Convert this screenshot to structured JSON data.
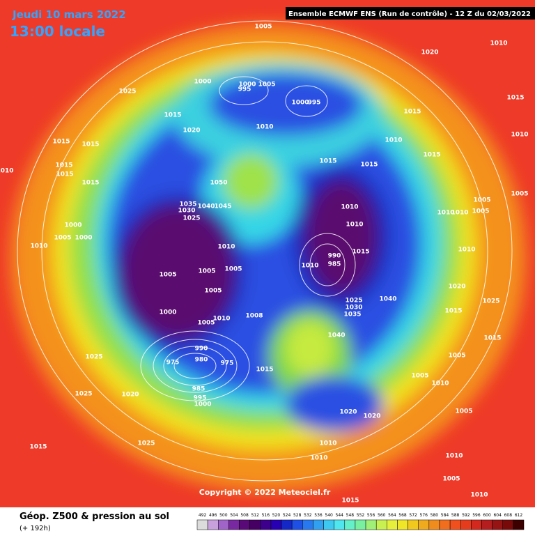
{
  "header": {
    "date": "Jeudi 10 mars 2022",
    "time": "13:00 locale",
    "model": "Ensemble ECMWF ENS  (Run de contrôle)  -  12 Z du 02/03/2022"
  },
  "footer": {
    "title": "Géop. Z500 & pression au sol",
    "lead": "(+ 192h)",
    "copyright": "Copyright © 2022 Meteociel.fr"
  },
  "colorbar": {
    "labels": [
      "492",
      "496",
      "500",
      "504",
      "508",
      "512",
      "516",
      "520",
      "524",
      "528",
      "532",
      "536",
      "540",
      "544",
      "548",
      "552",
      "556",
      "560",
      "564",
      "568",
      "572",
      "576",
      "580",
      "584",
      "588",
      "592",
      "596",
      "600",
      "604",
      "608",
      "612"
    ],
    "colors": [
      "#dcdcdc",
      "#c8a0dc",
      "#a064c8",
      "#7828a0",
      "#5a0a78",
      "#460064",
      "#3c008c",
      "#2800b4",
      "#1428c8",
      "#1e50e6",
      "#2878f0",
      "#32a0f0",
      "#3cc8f0",
      "#50e6f0",
      "#64f0c8",
      "#78f0a0",
      "#a0f078",
      "#c8f050",
      "#e6f03c",
      "#f0e628",
      "#f0c81e",
      "#f0aa1e",
      "#f08c1e",
      "#f06e1e",
      "#f0501e",
      "#e63c1e",
      "#d2281e",
      "#b41e1e",
      "#961414",
      "#780a0a",
      "#3c0000"
    ]
  },
  "isobar_labels": [
    "1005",
    "1020",
    "1010",
    "1025",
    "1000",
    "995",
    "1000",
    "1005",
    "1000",
    "995",
    "1015",
    "1015",
    "1020",
    "1010",
    "1010",
    "1015",
    "1015",
    "1015",
    "1015",
    "1015",
    "1015",
    "1015",
    "1015",
    "1050",
    "1005",
    "1035",
    "1030",
    "1025",
    "1040",
    "1045",
    "1010",
    "1010",
    "1010",
    "1005",
    "1000",
    "1010",
    "1005",
    "1000",
    "1010",
    "1010",
    "1010",
    "990",
    "1010",
    "985",
    "1015",
    "1005",
    "1005",
    "1005",
    "1005",
    "1025",
    "1030",
    "1040",
    "1035",
    "1000",
    "1008",
    "1005",
    "1010",
    "1040",
    "990",
    "975",
    "980",
    "975",
    "1015",
    "1025",
    "985",
    "995",
    "1000",
    "1025",
    "1020",
    "1005",
    "1005",
    "1015",
    "1020",
    "1025",
    "1015",
    "1010",
    "1005",
    "1020",
    "1020",
    "1015",
    "1025",
    "1010",
    "1010",
    "1010",
    "1005",
    "1015",
    "1010",
    "1010",
    "1005",
    "1015",
    "1010"
  ]
}
